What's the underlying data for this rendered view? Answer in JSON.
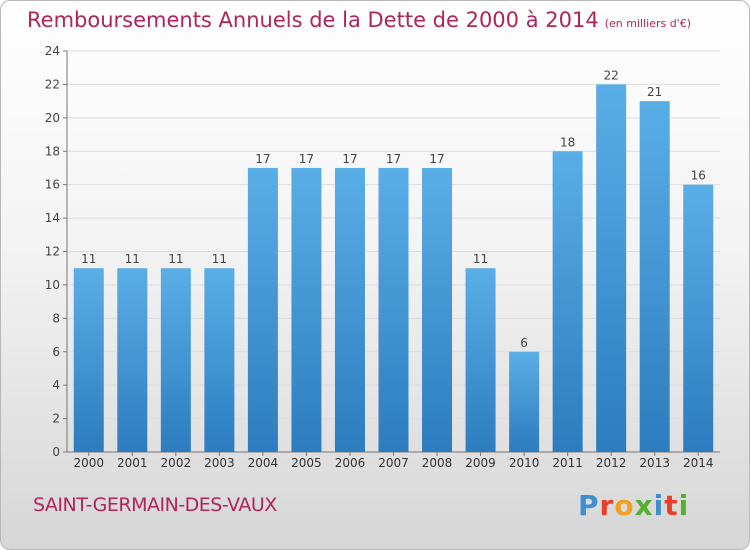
{
  "header": {
    "title": "Remboursements Annuels de la Dette de 2000 à 2014",
    "unit_note": "(en milliers d'€)"
  },
  "footer": {
    "commune": "SAINT-GERMAIN-DES-VAUX",
    "logo": "Proxiti",
    "logo_colors": [
      "#3f8fd0",
      "#e8402a",
      "#f0a020",
      "#55b030",
      "#3f8fd0",
      "#e8402a",
      "#55b030"
    ]
  },
  "colors": {
    "bar_top": "#5aaee6",
    "bar_bottom": "#2c7cbf",
    "title": "#b0245a"
  },
  "chart_data": {
    "type": "bar",
    "categories": [
      "2000",
      "2001",
      "2002",
      "2003",
      "2004",
      "2005",
      "2006",
      "2007",
      "2008",
      "2009",
      "2010",
      "2011",
      "2012",
      "2013",
      "2014"
    ],
    "values": [
      11,
      11,
      11,
      11,
      17,
      17,
      17,
      17,
      17,
      11,
      6,
      18,
      22,
      21,
      16
    ],
    "ylim": [
      0,
      24
    ],
    "yticks": [
      0,
      2,
      4,
      6,
      8,
      10,
      12,
      14,
      16,
      18,
      20,
      22,
      24
    ],
    "grid": true,
    "data_labels": true
  }
}
